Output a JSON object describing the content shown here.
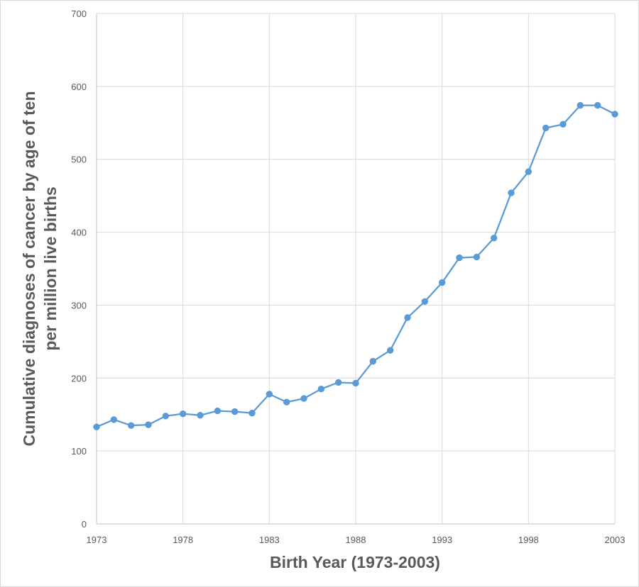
{
  "chart_data": {
    "type": "line",
    "title": "",
    "xlabel": "Birth Year (1973-2003)",
    "ylabel_line1": "Cumulative diagnoses of cancer by age of ten",
    "ylabel_line2": "per million live births",
    "xlim": [
      1973,
      2003
    ],
    "ylim": [
      0,
      700
    ],
    "x_ticks": [
      "1973",
      "1978",
      "1983",
      "1988",
      "1993",
      "1998",
      "2003"
    ],
    "y_ticks": [
      "0",
      "100",
      "200",
      "300",
      "400",
      "500",
      "600",
      "700"
    ],
    "grid": true,
    "legend": "none",
    "colors": {
      "series": "#5b9bd5",
      "grid": "#d9d9d9",
      "text": "#595959"
    },
    "series": [
      {
        "x": [
          1973,
          1974,
          1975,
          1976,
          1977,
          1978,
          1979,
          1980,
          1981,
          1982,
          1983,
          1984,
          1985,
          1986,
          1987,
          1988,
          1989,
          1990,
          1991,
          1992,
          1993,
          1994,
          1995,
          1996,
          1997,
          1998,
          1999,
          2000,
          2001,
          2002,
          2003
        ],
        "values": [
          133,
          143,
          135,
          136,
          148,
          151,
          149,
          155,
          154,
          152,
          178,
          167,
          172,
          185,
          194,
          193,
          223,
          238,
          283,
          305,
          331,
          365,
          366,
          392,
          454,
          483,
          543,
          548,
          574,
          574,
          562
        ]
      }
    ]
  }
}
